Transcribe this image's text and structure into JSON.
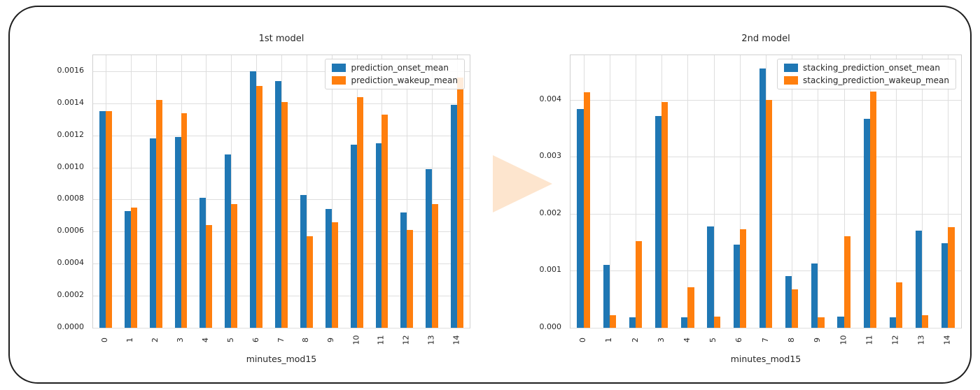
{
  "figure": {
    "frame_border_color": "#1f1f1f",
    "arrow_color": "#fde5ce"
  },
  "chart_data": [
    {
      "type": "bar",
      "title": "1st model",
      "xlabel": "minutes_mod15",
      "categories": [
        "0",
        "1",
        "2",
        "3",
        "4",
        "5",
        "6",
        "7",
        "8",
        "9",
        "10",
        "11",
        "12",
        "13",
        "14"
      ],
      "series": [
        {
          "name": "prediction_onset_mean",
          "color": "#1f77b4",
          "values": [
            0.00135,
            0.00073,
            0.00118,
            0.00119,
            0.00081,
            0.00108,
            0.0016,
            0.00154,
            0.00083,
            0.00074,
            0.00114,
            0.00115,
            0.00072,
            0.00099,
            0.00139
          ]
        },
        {
          "name": "prediction_wakeup_mean",
          "color": "#ff7f0e",
          "values": [
            0.00135,
            0.00075,
            0.00142,
            0.00134,
            0.00064,
            0.00077,
            0.00151,
            0.00141,
            0.00057,
            0.00066,
            0.00144,
            0.00133,
            0.00061,
            0.00077,
            0.00156
          ]
        }
      ],
      "ylim": [
        0,
        0.0017
      ],
      "yticks": [
        0,
        0.0002,
        0.0004,
        0.0006,
        0.0008,
        0.001,
        0.0012,
        0.0014,
        0.0016
      ],
      "ytick_labels": [
        "0.0000",
        "0.0002",
        "0.0004",
        "0.0006",
        "0.0008",
        "0.0010",
        "0.0012",
        "0.0014",
        "0.0016"
      ],
      "grid": true,
      "legend_position": "upper right"
    },
    {
      "type": "bar",
      "title": "2nd model",
      "xlabel": "minutes_mod15",
      "categories": [
        "0",
        "1",
        "2",
        "3",
        "4",
        "5",
        "6",
        "7",
        "8",
        "9",
        "10",
        "11",
        "12",
        "13",
        "14"
      ],
      "series": [
        {
          "name": "stacking_prediction_onset_mean",
          "color": "#1f77b4",
          "values": [
            0.00384,
            0.0011,
            0.00018,
            0.00371,
            0.00018,
            0.00178,
            0.00146,
            0.00455,
            0.00091,
            0.00113,
            0.0002,
            0.00366,
            0.00018,
            0.0017,
            0.00148
          ]
        },
        {
          "name": "stacking_prediction_wakeup_mean",
          "color": "#ff7f0e",
          "values": [
            0.00413,
            0.00022,
            0.00152,
            0.00396,
            0.00071,
            0.0002,
            0.00173,
            0.004,
            0.00068,
            0.00018,
            0.00161,
            0.00414,
            0.0008,
            0.00022,
            0.00177
          ]
        }
      ],
      "ylim": [
        0,
        0.00478
      ],
      "yticks": [
        0,
        0.001,
        0.002,
        0.003,
        0.004
      ],
      "ytick_labels": [
        "0.000",
        "0.001",
        "0.002",
        "0.003",
        "0.004"
      ],
      "grid": true,
      "legend_position": "upper right"
    }
  ]
}
